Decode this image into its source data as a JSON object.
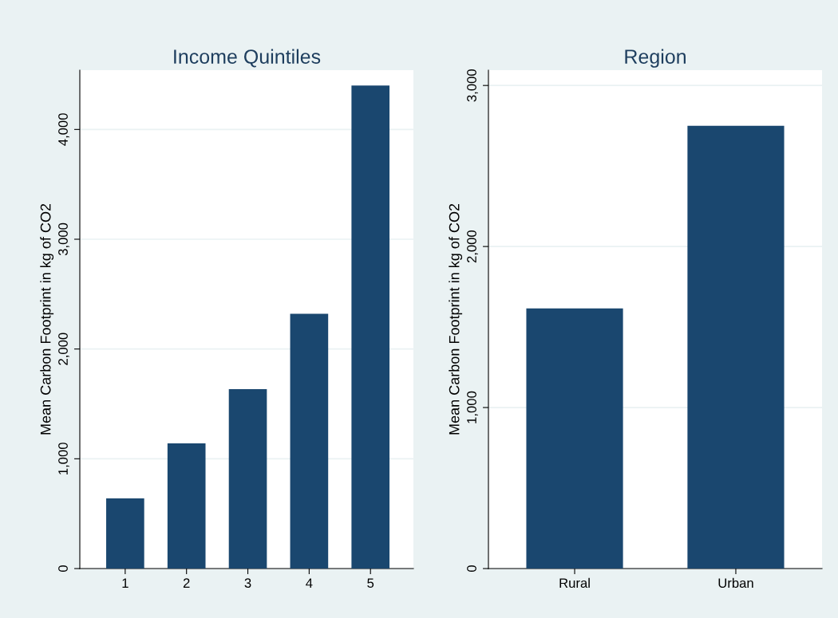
{
  "chart_data": [
    {
      "type": "bar",
      "title": "Income Quintiles",
      "ylabel": "Mean Carbon Footprint in kg of CO2",
      "categories": [
        "1",
        "2",
        "3",
        "4",
        "5"
      ],
      "values": [
        640,
        1140,
        1635,
        2320,
        4400
      ],
      "color": "#1a476f",
      "ylim": [
        0,
        4540
      ],
      "yticks": [
        {
          "value": 0,
          "label": "0"
        },
        {
          "value": 1000,
          "label": "1,000"
        },
        {
          "value": 2000,
          "label": "2,000"
        },
        {
          "value": 3000,
          "label": "3,000"
        },
        {
          "value": 4000,
          "label": "4,000"
        }
      ],
      "grid": "y"
    },
    {
      "type": "bar",
      "title": "Region",
      "ylabel": "Mean Carbon Footprint in kg of CO2",
      "categories": [
        "Rural",
        "Urban"
      ],
      "values": [
        1615,
        2750
      ],
      "color": "#1a476f",
      "ylim": [
        0,
        3095
      ],
      "yticks": [
        {
          "value": 0,
          "label": "0"
        },
        {
          "value": 1000,
          "label": "1,000"
        },
        {
          "value": 2000,
          "label": "2,000"
        },
        {
          "value": 3000,
          "label": "3,000"
        }
      ],
      "grid": "y"
    }
  ]
}
